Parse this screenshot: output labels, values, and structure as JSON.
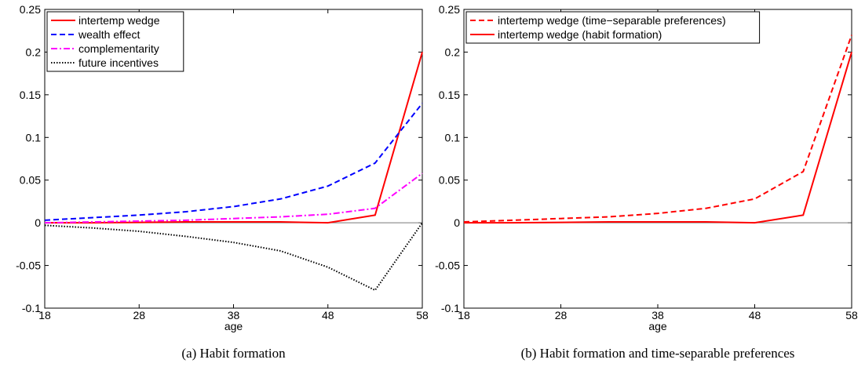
{
  "chart_data": [
    {
      "type": "line",
      "caption": "(a) Habit formation",
      "xlabel": "age",
      "x": [
        18,
        23,
        28,
        33,
        38,
        43,
        48,
        53,
        58
      ],
      "xlim": [
        18,
        58
      ],
      "xticks": [
        18,
        28,
        38,
        48,
        58
      ],
      "ylim": [
        -0.1,
        0.25
      ],
      "yticks": [
        -0.1,
        -0.05,
        0,
        0.05,
        0.1,
        0.15,
        0.2,
        0.25
      ],
      "legend": "upper left",
      "series": [
        {
          "name": "intertemp wedge",
          "color": "#ff0000",
          "style": "solid",
          "values": [
            0,
            0,
            0.0005,
            0.001,
            0.001,
            0.001,
            0,
            0.009,
            0.2
          ]
        },
        {
          "name": "wealth effect",
          "color": "#0000ff",
          "style": "dashed",
          "values": [
            0.003,
            0.006,
            0.009,
            0.013,
            0.019,
            0.028,
            0.043,
            0.07,
            0.14
          ]
        },
        {
          "name": "complementarity",
          "color": "#ff00ff",
          "style": "dashdot",
          "values": [
            0,
            0.001,
            0.002,
            0.003,
            0.005,
            0.007,
            0.01,
            0.017,
            0.058
          ]
        },
        {
          "name": "future incentives",
          "color": "#000000",
          "style": "dotted",
          "values": [
            -0.003,
            -0.006,
            -0.01,
            -0.016,
            -0.023,
            -0.033,
            -0.052,
            -0.079,
            0
          ]
        }
      ]
    },
    {
      "type": "line",
      "caption": "(b) Habit formation and time-separable preferences",
      "xlabel": "age",
      "x": [
        18,
        23,
        28,
        33,
        38,
        43,
        48,
        53,
        58
      ],
      "xlim": [
        18,
        58
      ],
      "xticks": [
        18,
        28,
        38,
        48,
        58
      ],
      "ylim": [
        -0.1,
        0.25
      ],
      "yticks": [
        -0.1,
        -0.05,
        0,
        0.05,
        0.1,
        0.15,
        0.2,
        0.25
      ],
      "legend": "upper left",
      "series": [
        {
          "name": "intertemp wedge (time−separable preferences)",
          "color": "#ff0000",
          "style": "dashed",
          "values": [
            0.001,
            0.003,
            0.005,
            0.007,
            0.011,
            0.017,
            0.028,
            0.06,
            0.22
          ]
        },
        {
          "name": "intertemp wedge (habit formation)",
          "color": "#ff0000",
          "style": "solid",
          "values": [
            0,
            0,
            0.0005,
            0.001,
            0.001,
            0.001,
            0,
            0.009,
            0.2
          ]
        }
      ]
    }
  ]
}
